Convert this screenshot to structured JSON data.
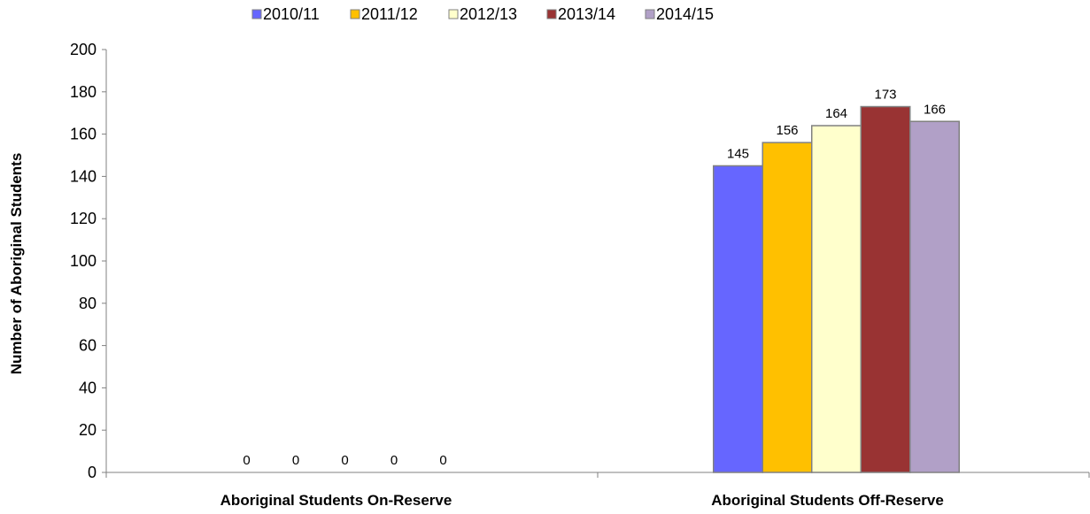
{
  "chart_data": {
    "type": "bar",
    "title": "",
    "xlabel": "",
    "ylabel": "Number of Aboriginal Students",
    "ylim": [
      0,
      200
    ],
    "yticks": [
      0,
      20,
      40,
      60,
      80,
      100,
      120,
      140,
      160,
      180,
      200
    ],
    "categories": [
      "Aboriginal Students On-Reserve",
      "Aboriginal Students Off-Reserve"
    ],
    "series": [
      {
        "name": "2010/11",
        "color": "#6666ff",
        "values": [
          0,
          145
        ]
      },
      {
        "name": "2011/12",
        "color": "#ffc000",
        "values": [
          0,
          156
        ]
      },
      {
        "name": "2012/13",
        "color": "#ffffcc",
        "values": [
          0,
          164
        ]
      },
      {
        "name": "2013/14",
        "color": "#993333",
        "values": [
          0,
          173
        ]
      },
      {
        "name": "2014/15",
        "color": "#b1a0c7",
        "values": [
          0,
          166
        ]
      }
    ],
    "legend_position": "top",
    "grid": false,
    "bar_border_color": "#808080"
  }
}
